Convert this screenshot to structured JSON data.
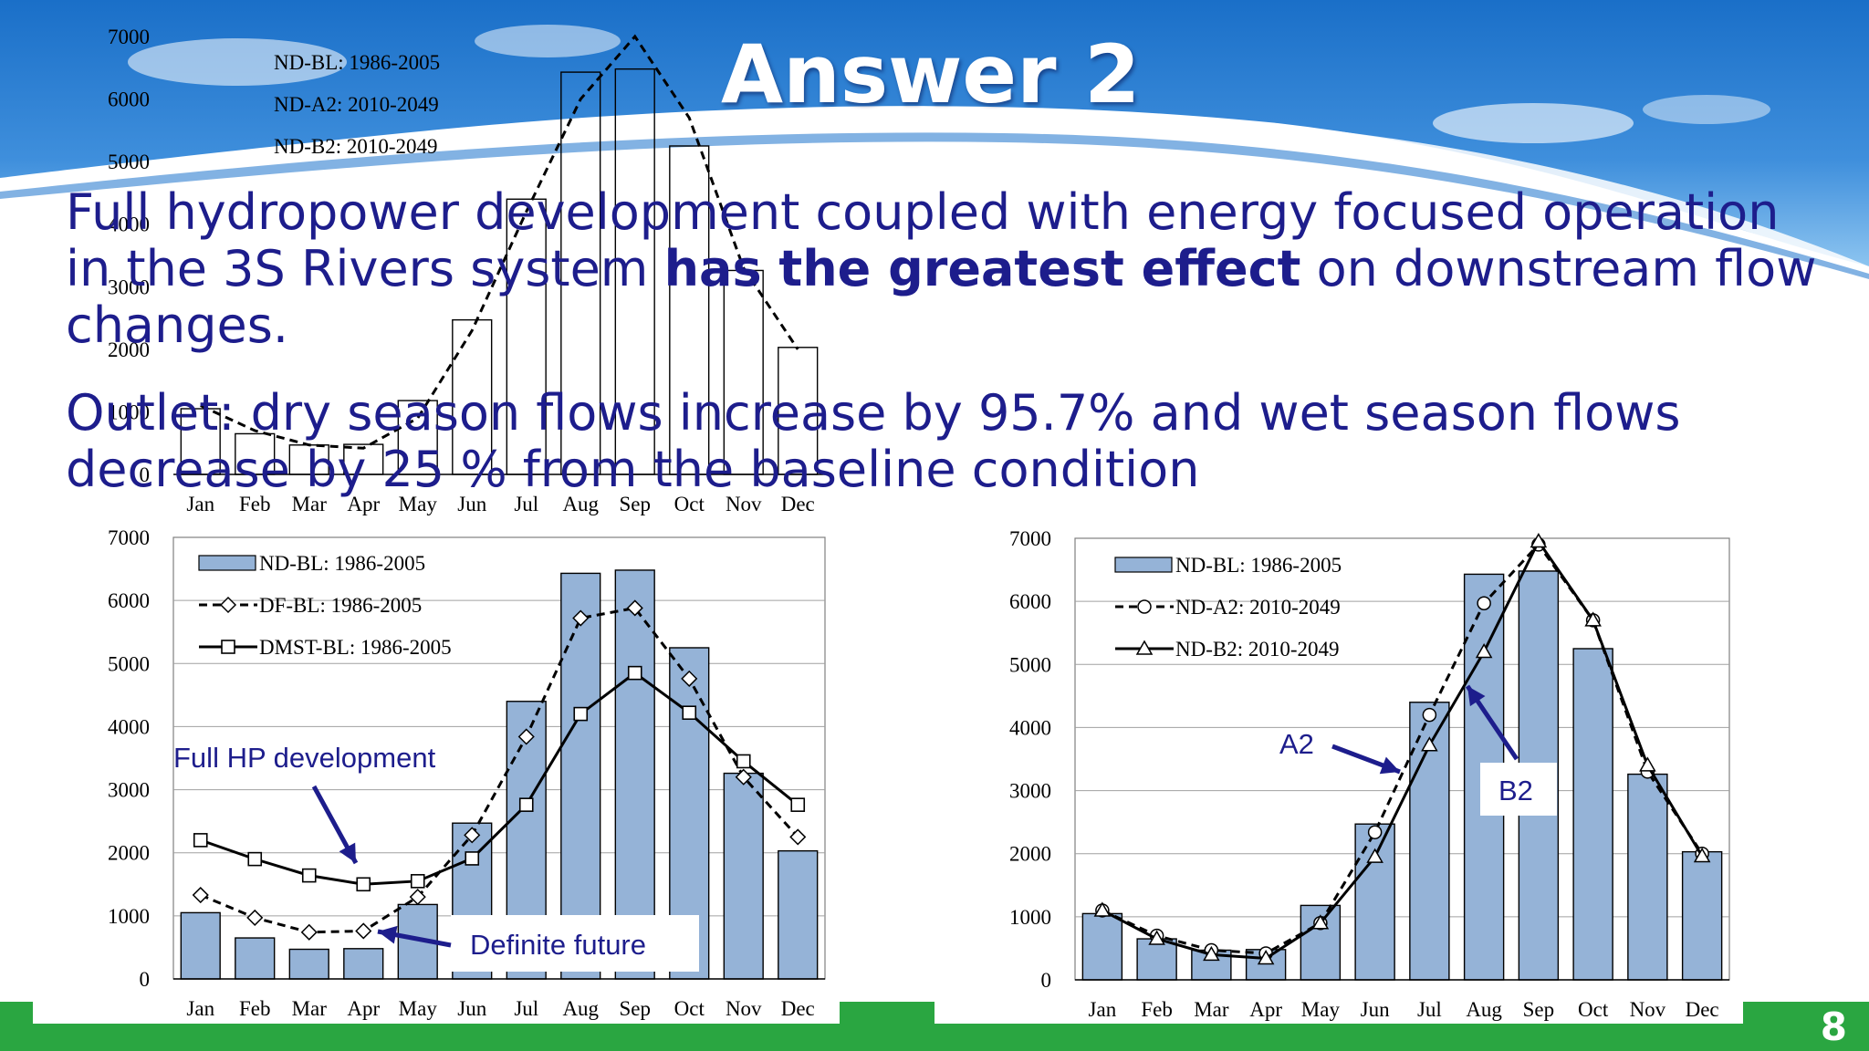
{
  "slide": {
    "title": "Answer 2",
    "para1_a": "Full hydropower development coupled with energy focused operation in the 3S Rivers system ",
    "para1_bold": "has the greatest effect",
    "para1_b": " on downstream flow changes.",
    "para2": "Outlet: dry season flows increase by 95.7% and wet season flows decrease by 25 % from the baseline condition",
    "page_number": "8",
    "colors": {
      "sky_top": "#1a6fc8",
      "sky_bottom": "#6fb2ea",
      "green_band": "#2aa641",
      "text_blue": "#1d1d8c",
      "bar_fill": "#95b3d7"
    }
  },
  "chart_data": [
    {
      "id": "background",
      "type": "bar",
      "categories": [
        "Jan",
        "Feb",
        "Mar",
        "Apr",
        "May",
        "Jun",
        "Jul",
        "Aug",
        "Sep",
        "Oct",
        "Nov",
        "Dec"
      ],
      "ylim": [
        0,
        7000
      ],
      "yticks": [
        "0",
        "1000",
        "2000",
        "3000",
        "4000",
        "5000",
        "6000",
        "7000"
      ],
      "legend": [
        "ND-BL: 1986-2005",
        "ND-A2: 2010-2049",
        "ND-B2: 2010-2049"
      ],
      "series": [
        {
          "values": [
            1050,
            650,
            470,
            480,
            1180,
            2470,
            4400,
            6430,
            6480,
            5250,
            3260,
            2030
          ],
          "style": "bar"
        },
        {
          "values": [
            1100,
            700,
            470,
            420,
            900,
            2300,
            4200,
            6000,
            7000,
            5700,
            3300,
            2000
          ],
          "style": "dashed"
        }
      ]
    },
    {
      "id": "left",
      "type": "bar",
      "categories": [
        "Jan",
        "Feb",
        "Mar",
        "Apr",
        "May",
        "Jun",
        "Jul",
        "Aug",
        "Sep",
        "Oct",
        "Nov",
        "Dec"
      ],
      "ylim": [
        0,
        7000
      ],
      "yticks": [
        "0",
        "1000",
        "2000",
        "3000",
        "4000",
        "5000",
        "6000",
        "7000"
      ],
      "legend_position": "top-left",
      "series": [
        {
          "name": "ND-BL: 1986-2005",
          "style": "bar",
          "values": [
            1050,
            650,
            470,
            480,
            1180,
            2470,
            4400,
            6430,
            6480,
            5250,
            3260,
            2030
          ]
        },
        {
          "name": "DF-BL: 1986-2005",
          "style": "dashed-diamond",
          "values": [
            1330,
            970,
            740,
            760,
            1300,
            2280,
            3840,
            5720,
            5880,
            4760,
            3200,
            2250
          ]
        },
        {
          "name": "DMST-BL: 1986-2005",
          "style": "solid-square",
          "values": [
            2200,
            1900,
            1640,
            1500,
            1550,
            1910,
            2760,
            4200,
            4850,
            4220,
            3450,
            2760
          ]
        }
      ],
      "annotations": [
        "Full HP development",
        "Definite future"
      ]
    },
    {
      "id": "right",
      "type": "bar",
      "categories": [
        "Jan",
        "Feb",
        "Mar",
        "Apr",
        "May",
        "Jun",
        "Jul",
        "Aug",
        "Sep",
        "Oct",
        "Nov",
        "Dec"
      ],
      "ylim": [
        0,
        7000
      ],
      "yticks": [
        "0",
        "1000",
        "2000",
        "3000",
        "4000",
        "5000",
        "6000",
        "7000"
      ],
      "legend_position": "top-left",
      "series": [
        {
          "name": "ND-BL: 1986-2005",
          "style": "bar",
          "values": [
            1050,
            650,
            470,
            480,
            1180,
            2470,
            4400,
            6430,
            6480,
            5250,
            3260,
            2030
          ]
        },
        {
          "name": "ND-A2: 2010-2049",
          "style": "dashed-circle",
          "values": [
            1100,
            700,
            470,
            420,
            900,
            2340,
            4200,
            5970,
            6900,
            5700,
            3300,
            2000
          ]
        },
        {
          "name": "ND-B2: 2010-2049",
          "style": "solid-triangle",
          "values": [
            1100,
            650,
            400,
            340,
            900,
            1950,
            3720,
            5200,
            6950,
            5700,
            3400,
            1960
          ]
        }
      ],
      "annotations": [
        "A2",
        "B2"
      ]
    }
  ]
}
